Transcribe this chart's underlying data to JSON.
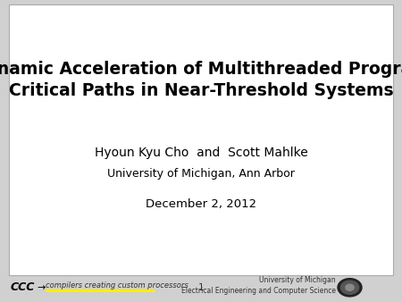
{
  "background_color": "#ffffff",
  "slide_border_color": "#aaaaaa",
  "title_line1": "Dynamic Acceleration of Multithreaded Program",
  "title_line2": "Critical Paths in Near-Threshold Systems",
  "author_line": "Hyoun Kyu Cho  and  Scott Mahlke",
  "institution_line": "University of Michigan, Ann Arbor",
  "date_line": "December 2, 2012",
  "footer_left_main": "CCC",
  "footer_left_tagline": "compilers creating custom processors",
  "footer_center": "1",
  "footer_right_line1": "University of Michigan",
  "footer_right_line2": "Electrical Engineering and Computer Science",
  "title_fontsize": 13.5,
  "author_fontsize": 10,
  "institution_fontsize": 9,
  "date_fontsize": 9.5,
  "footer_fontsize": 6,
  "title_color": "#000000",
  "author_color": "#000000",
  "footer_text_color": "#333333",
  "ccc_color": "#000000",
  "tagline_underline_color": "#ffee00",
  "slide_bg": "#d0d0d0",
  "footer_bg": "#d0d0d0"
}
